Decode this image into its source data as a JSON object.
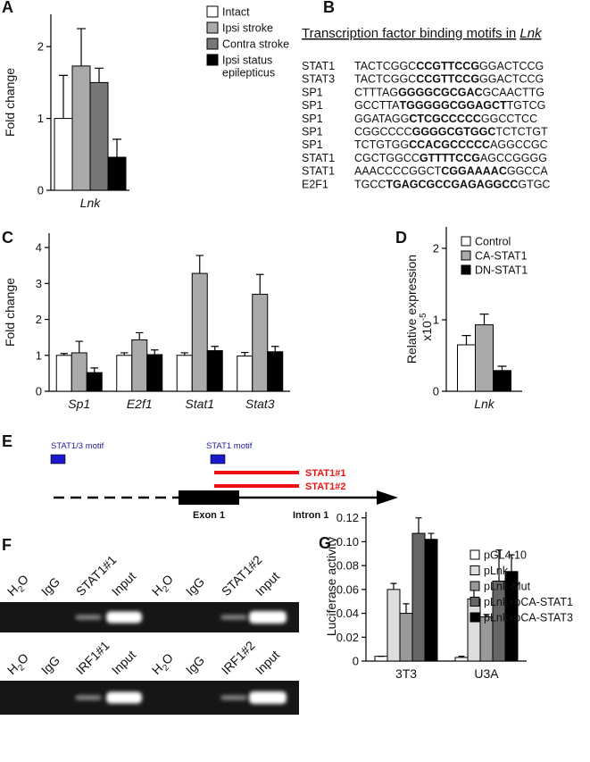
{
  "chart_data": [
    {
      "type": "bar",
      "panel": "A",
      "ylabel": "Fold change",
      "categories": [
        "Lnk"
      ],
      "ylim": [
        0,
        2.45
      ],
      "yticks": [
        0,
        1,
        2
      ],
      "legend": "right",
      "series": [
        {
          "name": "Intact",
          "color": "#ffffff",
          "values": [
            1.0
          ],
          "errors": [
            0.6
          ]
        },
        {
          "name": "Ipsi stroke",
          "color": "#aaaaaa",
          "values": [
            1.73
          ],
          "errors": [
            0.52
          ]
        },
        {
          "name": "Contra stroke",
          "color": "#777777",
          "values": [
            1.5
          ],
          "errors": [
            0.2
          ]
        },
        {
          "name": "Ipsi status epilepticus",
          "color": "#000000",
          "values": [
            0.46
          ],
          "errors": [
            0.25
          ]
        }
      ]
    },
    {
      "type": "bar",
      "panel": "C",
      "ylabel": "Fold change",
      "categories": [
        "Sp1",
        "E2f1",
        "Stat1",
        "Stat3"
      ],
      "ylim": [
        0,
        4.4
      ],
      "yticks": [
        0,
        1,
        2,
        3,
        4
      ],
      "series": [
        {
          "color": "#ffffff",
          "values": [
            1.0,
            1.0,
            1.0,
            0.98
          ],
          "errors": [
            0.05,
            0.07,
            0.07,
            0.1
          ]
        },
        {
          "color": "#aaaaaa",
          "values": [
            1.07,
            1.43,
            3.28,
            2.7
          ],
          "errors": [
            0.32,
            0.2,
            0.5,
            0.55
          ]
        },
        {
          "color": "#000000",
          "values": [
            0.52,
            1.02,
            1.13,
            1.1
          ],
          "errors": [
            0.13,
            0.13,
            0.12,
            0.15
          ]
        }
      ]
    },
    {
      "type": "bar",
      "panel": "D",
      "ylabel": "Relative expression",
      "ylabel_unit": {
        "base": "x10",
        "exponent": "-5"
      },
      "categories": [
        "Lnk"
      ],
      "ylim": [
        0,
        2.3
      ],
      "yticks": [
        0,
        1,
        2
      ],
      "legend": "upper right",
      "series": [
        {
          "name": "Control",
          "color": "#ffffff",
          "values": [
            0.65
          ],
          "errors": [
            0.13
          ]
        },
        {
          "name": "CA-STAT1",
          "color": "#aaaaaa",
          "values": [
            0.93
          ],
          "errors": [
            0.15
          ]
        },
        {
          "name": "DN-STAT1",
          "color": "#000000",
          "values": [
            0.29
          ],
          "errors": [
            0.06
          ]
        }
      ]
    },
    {
      "type": "bar",
      "panel": "G",
      "ylabel": "Luciferase activity",
      "categories": [
        "3T3",
        "U3A"
      ],
      "ylim": [
        0,
        0.125
      ],
      "yticks": [
        0,
        0.02,
        0.04,
        0.06,
        0.08,
        {
          "value": 0.1,
          "label": "0.10"
        },
        0.12
      ],
      "legend": "upper right",
      "series": [
        {
          "name": "pGL4.10",
          "color": "#ffffff",
          "values": [
            0.004,
            0.003
          ],
          "errors": [
            0,
            0.001
          ]
        },
        {
          "name": "pLnk",
          "color": "#dddddd",
          "values": [
            0.06,
            0.052
          ],
          "errors": [
            0.005,
            0.011
          ]
        },
        {
          "name": "pLnk-Mut",
          "color": "#999999",
          "values": [
            0.04,
            0.037
          ],
          "errors": [
            0.008,
            0.002
          ]
        },
        {
          "name": "pLnk+pCA-STAT1",
          "color": "#666666",
          "values": [
            0.107,
            0.067
          ],
          "errors": [
            0.013,
            0.026
          ]
        },
        {
          "name": "pLnk+pCA-STAT3",
          "color": "#000000",
          "values": [
            0.102,
            0.075
          ],
          "errors": [
            0.005,
            0.014
          ]
        }
      ]
    }
  ],
  "panel_b": {
    "label": "B",
    "title": [
      "Transcription factor binding motifs in",
      "Lnk"
    ],
    "motifs": [
      {
        "factor": "STAT1",
        "sequence": [
          "TACTCGGC",
          "CCGTTCCG",
          "GGACTCCG"
        ]
      },
      {
        "factor": "STAT3",
        "sequence": [
          "TACTCGGC",
          "CCGTTCCG",
          "GGACTCCG"
        ]
      },
      {
        "factor": "SP1",
        "sequence": [
          "CTTTAG",
          "GGGGCGCGAC",
          "GCAACTTG"
        ]
      },
      {
        "factor": "SP1",
        "sequence": [
          "GCCTTA",
          "TGGGGGCGGAGCT",
          "TGTCG"
        ]
      },
      {
        "factor": "SP1",
        "sequence": [
          "GGATAGG",
          "CTCGCCCCC",
          "GGCCTCC"
        ]
      },
      {
        "factor": "SP1",
        "sequence": [
          "CGGCCCC",
          "GGGGCGTGGC",
          "TCTCTGT"
        ]
      },
      {
        "factor": "SP1",
        "sequence": [
          "TCTGTGG",
          "CCACGCCCCC",
          "AGGCCGC"
        ]
      },
      {
        "factor": "STAT1",
        "sequence": [
          "CGCTGGCC",
          "GTTTTCCG",
          "AGCCGGGG"
        ]
      },
      {
        "factor": "STAT1",
        "sequence": [
          "AAACCCCGGCT",
          "CGGAAAAC",
          "GGCCA"
        ]
      },
      {
        "factor": "E2F1",
        "sequence": [
          "TGCC",
          "TGAGCGCCGAGAGGCC",
          "GTGC"
        ]
      }
    ]
  },
  "panel_e": {
    "label": "E",
    "motif_labels": [
      "STAT1/3 motif",
      "STAT1 motif"
    ],
    "primers": [
      "STAT1#1",
      "STAT1#2"
    ],
    "exon": "Exon 1",
    "intron": "Intron 1"
  },
  "panel_f": {
    "label": "F",
    "gels": [
      {
        "lanes": [
          [
            "H",
            "2",
            "O"
          ],
          "IgG",
          "STAT1#1",
          "Input",
          [
            "H",
            "2",
            "O"
          ],
          "IgG",
          "STAT1#2",
          "Input"
        ]
      },
      {
        "lanes": [
          [
            "H",
            "2",
            "O"
          ],
          "IgG",
          "IRF1#1",
          "Input",
          [
            "H",
            "2",
            "O"
          ],
          "IgG",
          "IRF1#2",
          "Input"
        ]
      }
    ]
  }
}
